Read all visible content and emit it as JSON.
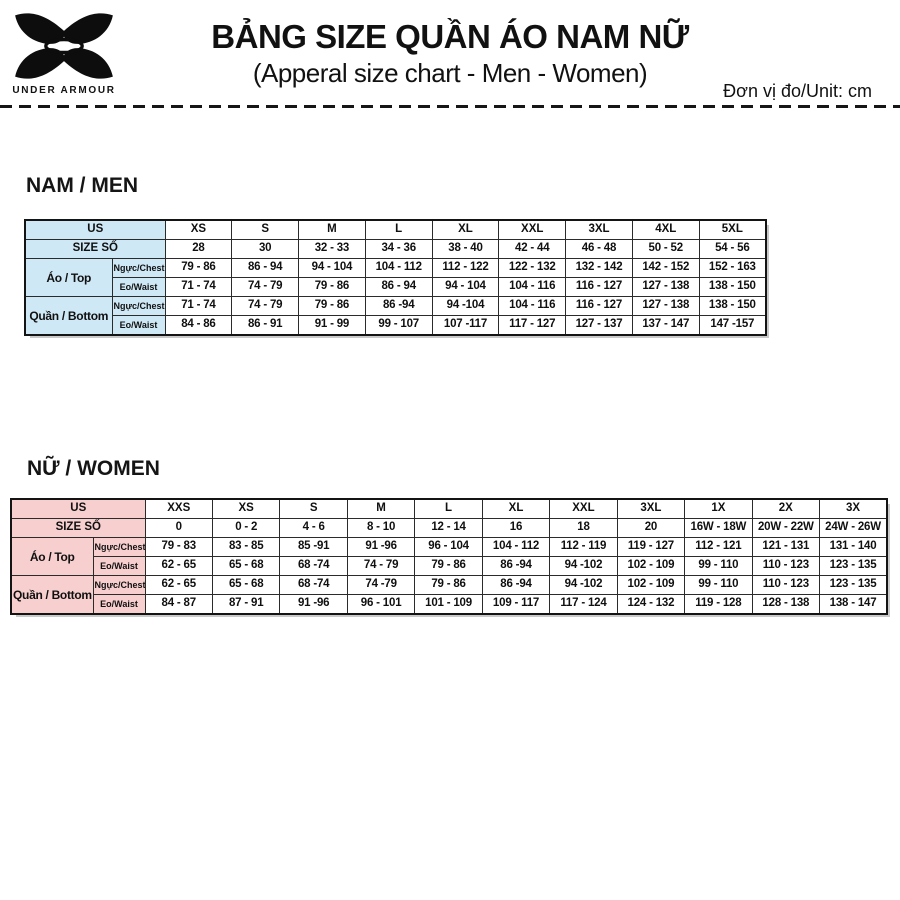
{
  "header": {
    "brand": "UNDER ARMOUR",
    "logo_icon": "under-armour-logo",
    "title": "BẢNG SIZE QUẦN ÁO NAM NỮ",
    "subtitle": "(Apperal size chart - Men - Women)",
    "unit_note": "Đơn vị đo/Unit: cm"
  },
  "men": {
    "section_title": "NAM / MEN",
    "accent_color": "#cfe8f6",
    "table": {
      "us_label": "US",
      "size_label": "SIZE SỐ",
      "columns": [
        "XS",
        "S",
        "M",
        "L",
        "XL",
        "XXL",
        "3XL",
        "4XL",
        "5XL"
      ],
      "size_numbers": [
        "28",
        "30",
        "32 - 33",
        "34 - 36",
        "38 - 40",
        "42 - 44",
        "46 - 48",
        "50 - 52",
        "54 - 56"
      ],
      "groups": [
        {
          "label": "Áo / Top",
          "rows": [
            {
              "label": "Ngực/Chest",
              "values": [
                "79 - 86",
                "86 - 94",
                "94 - 104",
                "104 - 112",
                "112 - 122",
                "122 - 132",
                "132 - 142",
                "142 - 152",
                "152 - 163"
              ]
            },
            {
              "label": "Eo/Waist",
              "values": [
                "71 - 74",
                "74 - 79",
                "79 - 86",
                "86 - 94",
                "94 - 104",
                "104 - 116",
                "116 - 127",
                "127 - 138",
                "138 - 150"
              ]
            }
          ]
        },
        {
          "label": "Quần / Bottom",
          "rows": [
            {
              "label": "Ngực/Chest",
              "values": [
                "71 - 74",
                "74 - 79",
                "79 - 86",
                "86 -94",
                "94 -104",
                "104 - 116",
                "116 - 127",
                "127 - 138",
                "138 - 150"
              ]
            },
            {
              "label": "Eo/Waist",
              "values": [
                "84 - 86",
                "86 - 91",
                "91 - 99",
                "99 - 107",
                "107 -117",
                "117 - 127",
                "127 - 137",
                "137 - 147",
                "147 -157"
              ]
            }
          ]
        }
      ]
    }
  },
  "women": {
    "section_title": "NỮ / WOMEN",
    "accent_color": "#f8cfcf",
    "table": {
      "us_label": "US",
      "size_label": "SIZE SỐ",
      "columns": [
        "XXS",
        "XS",
        "S",
        "M",
        "L",
        "XL",
        "XXL",
        "3XL",
        "1X",
        "2X",
        "3X"
      ],
      "size_numbers": [
        "0",
        "0 - 2",
        "4 - 6",
        "8 - 10",
        "12 - 14",
        "16",
        "18",
        "20",
        "16W - 18W",
        "20W - 22W",
        "24W - 26W"
      ],
      "groups": [
        {
          "label": "Áo / Top",
          "rows": [
            {
              "label": "Ngực/Chest",
              "values": [
                "79 - 83",
                "83 - 85",
                "85 -91",
                "91 -96",
                "96 - 104",
                "104 - 112",
                "112 - 119",
                "119 - 127",
                "112 - 121",
                "121 - 131",
                "131 - 140"
              ]
            },
            {
              "label": "Eo/Waist",
              "values": [
                "62 - 65",
                "65 - 68",
                "68 -74",
                "74 - 79",
                "79 - 86",
                "86 -94",
                "94 -102",
                "102 - 109",
                "99 - 110",
                "110 - 123",
                "123 - 135"
              ]
            }
          ]
        },
        {
          "label": "Quần / Bottom",
          "rows": [
            {
              "label": "Ngực/Chest",
              "values": [
                "62 - 65",
                "65 - 68",
                "68 -74",
                "74 -79",
                "79 - 86",
                "86 -94",
                "94 -102",
                "102 - 109",
                "99 - 110",
                "110 - 123",
                "123 - 135"
              ]
            },
            {
              "label": "Eo/Waist",
              "values": [
                "84 - 87",
                "87 - 91",
                "91 -96",
                "96 - 101",
                "101 - 109",
                "109 - 117",
                "117 - 124",
                "124 - 132",
                "119 - 128",
                "128 - 138",
                "138 - 147"
              ]
            }
          ]
        }
      ]
    }
  }
}
